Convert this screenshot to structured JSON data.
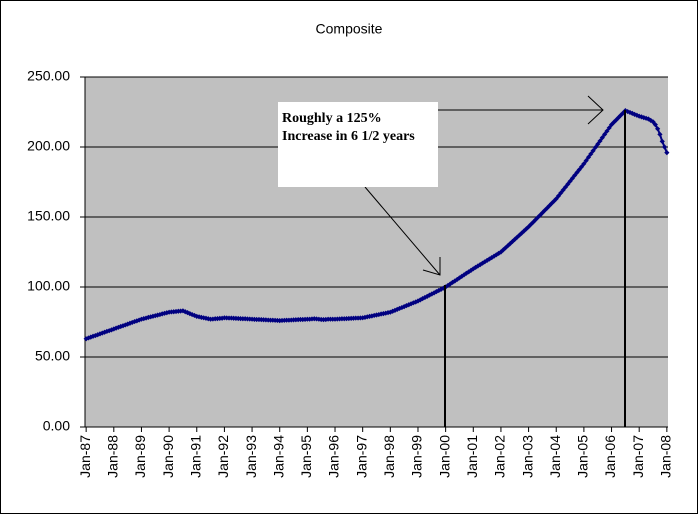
{
  "chart_data": {
    "type": "line",
    "title": "Composite",
    "categories": [
      "Jan-87",
      null,
      null,
      null,
      null,
      null,
      null,
      null,
      null,
      null,
      null,
      null,
      "Jan-88",
      null,
      null,
      null,
      null,
      null,
      null,
      null,
      null,
      null,
      null,
      null,
      "Jan-89",
      null,
      null,
      null,
      null,
      null,
      null,
      null,
      null,
      null,
      null,
      null,
      "Jan-90",
      null,
      null,
      null,
      null,
      null,
      null,
      null,
      null,
      null,
      null,
      null,
      "Jan-91",
      null,
      null,
      null,
      null,
      null,
      null,
      null,
      null,
      null,
      null,
      null,
      "Jan-92",
      null,
      null,
      null,
      null,
      null,
      null,
      null,
      null,
      null,
      null,
      null,
      "Jan-93",
      null,
      null,
      null,
      null,
      null,
      null,
      null,
      null,
      null,
      null,
      null,
      "Jan-94",
      null,
      null,
      null,
      null,
      null,
      null,
      null,
      null,
      null,
      null,
      null,
      "Jan-95",
      null,
      null,
      null,
      null,
      null,
      null,
      null,
      null,
      null,
      null,
      null,
      "Jan-96",
      null,
      null,
      null,
      null,
      null,
      null,
      null,
      null,
      null,
      null,
      null,
      "Jan-97",
      null,
      null,
      null,
      null,
      null,
      null,
      null,
      null,
      null,
      null,
      null,
      "Jan-98",
      null,
      null,
      null,
      null,
      null,
      null,
      null,
      null,
      null,
      null,
      null,
      "Jan-99",
      null,
      null,
      null,
      null,
      null,
      null,
      null,
      null,
      null,
      null,
      null,
      "Jan-00",
      null,
      null,
      null,
      null,
      null,
      null,
      null,
      null,
      null,
      null,
      null,
      "Jan-01",
      null,
      null,
      null,
      null,
      null,
      null,
      null,
      null,
      null,
      null,
      null,
      "Jan-02",
      null,
      null,
      null,
      null,
      null,
      null,
      null,
      null,
      null,
      null,
      null,
      "Jan-03",
      null,
      null,
      null,
      null,
      null,
      null,
      null,
      null,
      null,
      null,
      null,
      "Jan-04",
      null,
      null,
      null,
      null,
      null,
      null,
      null,
      null,
      null,
      null,
      null,
      "Jan-05",
      null,
      null,
      null,
      null,
      null,
      null,
      null,
      null,
      null,
      null,
      null,
      "Jan-06",
      null,
      null,
      null,
      null,
      null,
      null,
      null,
      null,
      null,
      null,
      null,
      "Jan-07",
      null,
      null,
      null,
      null,
      null,
      null,
      null,
      null,
      null,
      null,
      null,
      "Jan-08"
    ],
    "values": [
      63,
      63.6,
      64.2,
      64.8,
      65.3,
      65.9,
      66.5,
      67.1,
      67.7,
      68.3,
      68.8,
      69.4,
      70,
      70.6,
      71.2,
      71.8,
      72.3,
      72.9,
      73.5,
      74.1,
      74.7,
      75.3,
      75.8,
      76.4,
      77,
      77.4,
      77.8,
      78.3,
      78.7,
      79.1,
      79.5,
      79.9,
      80.3,
      80.8,
      81.2,
      81.6,
      82,
      82.2,
      82.3,
      82.5,
      82.7,
      82.8,
      83,
      82.3,
      81.7,
      81,
      80.3,
      79.7,
      79,
      78.7,
      78.3,
      78,
      77.7,
      77.3,
      77,
      77.1,
      77.3,
      77.4,
      77.6,
      77.7,
      78,
      77.9,
      77.8,
      77.8,
      77.7,
      77.6,
      77.5,
      77.4,
      77.3,
      77.3,
      77.2,
      77.1,
      77,
      76.9,
      76.8,
      76.8,
      76.7,
      76.6,
      76.5,
      76.4,
      76.3,
      76.3,
      76.2,
      76.1,
      76,
      76.1,
      76.2,
      76.3,
      76.3,
      76.4,
      76.5,
      76.6,
      76.7,
      76.8,
      76.8,
      76.9,
      77,
      77,
      77.2,
      77.3,
      77.2,
      77,
      76.8,
      76.7,
      76.8,
      77,
      77,
      77,
      77,
      77.1,
      77.2,
      77.3,
      77.3,
      77.4,
      77.5,
      77.6,
      77.7,
      77.8,
      77.8,
      77.9,
      78,
      78.3,
      78.7,
      79,
      79.3,
      79.7,
      80,
      80.3,
      80.7,
      81,
      81.3,
      81.7,
      82,
      82.7,
      83.3,
      84,
      84.7,
      85.3,
      86,
      86.7,
      87.3,
      88,
      88.7,
      89.3,
      90,
      90.8,
      91.7,
      92.5,
      93.3,
      94.2,
      95,
      95.8,
      96.7,
      97.5,
      98.3,
      99.2,
      100,
      101.1,
      102.2,
      103.3,
      104.3,
      105.4,
      106.5,
      107.6,
      108.7,
      109.8,
      110.8,
      111.9,
      113,
      114,
      115,
      116,
      117,
      118,
      119,
      120,
      121,
      122,
      123,
      124,
      125,
      126.5,
      128,
      129.5,
      131,
      132.5,
      134,
      135.5,
      137,
      138.5,
      140,
      141.5,
      143,
      144.7,
      146.3,
      148,
      149.7,
      151.3,
      153,
      154.7,
      156.3,
      158,
      159.7,
      161.3,
      163,
      165.1,
      167.2,
      169.3,
      171.3,
      173.4,
      175.5,
      177.6,
      179.7,
      181.8,
      183.8,
      185.9,
      188,
      190.3,
      192.7,
      195,
      197.3,
      199.7,
      202,
      204.3,
      206.7,
      209,
      211.3,
      213.7,
      216,
      217.7,
      219.3,
      221,
      222.7,
      224.3,
      226,
      225.3,
      224.7,
      224,
      223.3,
      222.7,
      222,
      221.5,
      221,
      220.5,
      220,
      219,
      218,
      216,
      213,
      209,
      204,
      200,
      196
    ],
    "color": "#000080",
    "ylim": [
      0,
      250
    ],
    "yticks": [
      {
        "value": 0,
        "label": "0.00"
      },
      {
        "value": 50,
        "label": "50.00"
      },
      {
        "value": 100,
        "label": "100.00"
      },
      {
        "value": 150,
        "label": "150.00"
      },
      {
        "value": 200,
        "label": "200.00"
      },
      {
        "value": 250,
        "label": "250.00"
      }
    ],
    "grid": true,
    "annotation": [
      "Roughly a 125%",
      "Increase in 6 1/2 years"
    ]
  }
}
